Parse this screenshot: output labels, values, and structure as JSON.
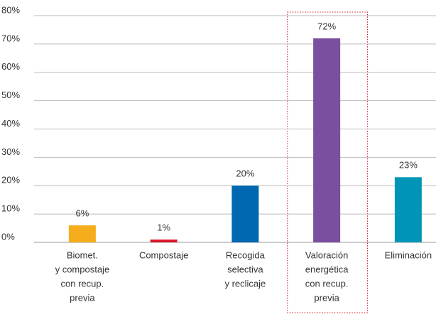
{
  "chart_data": {
    "type": "bar",
    "categories": [
      [
        "Biomet.",
        "y compostaje",
        "con recup.",
        "previa"
      ],
      [
        "Compostaje"
      ],
      [
        "Recogida",
        "selectiva",
        "y reclicaje"
      ],
      [
        "Valoración",
        "energética",
        "con recup.",
        "previa"
      ],
      [
        "Eliminación"
      ]
    ],
    "values": [
      6,
      1,
      20,
      72,
      23
    ],
    "value_labels": [
      "6%",
      "1%",
      "20%",
      "72%",
      "23%"
    ],
    "colors": [
      "#f5ad1b",
      "#d7192a",
      "#0067b1",
      "#7b4fa0",
      "#0095b6"
    ],
    "highlighted_category": 3,
    "ylim": [
      0,
      80
    ],
    "yticks": [
      {
        "value": 0,
        "label": "0%"
      },
      {
        "value": 10,
        "label": "10%"
      },
      {
        "value": 20,
        "label": "20%"
      },
      {
        "value": 30,
        "label": "30%"
      },
      {
        "value": 40,
        "label": "40%"
      },
      {
        "value": 50,
        "label": "50%"
      },
      {
        "value": 60,
        "label": "60%"
      },
      {
        "value": 70,
        "label": "70%"
      },
      {
        "value": 80,
        "label": "80%"
      }
    ],
    "grid": true
  }
}
